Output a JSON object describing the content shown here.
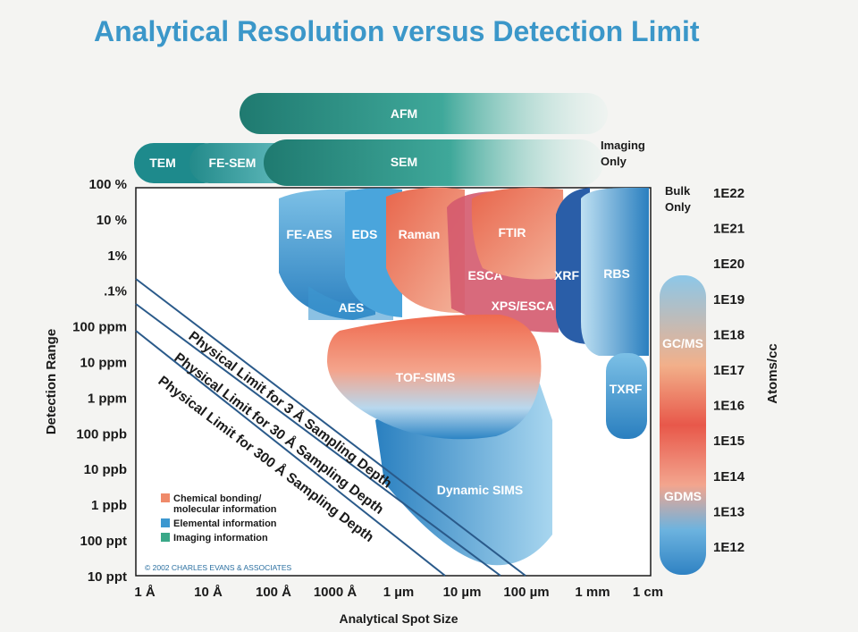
{
  "title": "Analytical Resolution versus Detection Limit",
  "y_axis_title": "Detection Range",
  "x_axis_title": "Analytical Spot Size",
  "right_axis_title": "Atoms/cc",
  "y_ticks": [
    "100 %",
    "10 %",
    "1%",
    ".1%",
    "100 ppm",
    "10 ppm",
    "1 ppm",
    "100 ppb",
    "10 ppb",
    "1 ppb",
    "100 ppt",
    "10 ppt"
  ],
  "x_ticks": [
    "1 Å",
    "10 Å",
    "100 Å",
    "1000 Å",
    "1 µm",
    "10 µm",
    "100 µm",
    "1 mm",
    "1 cm"
  ],
  "right_ticks": [
    "1E22",
    "1E21",
    "1E20",
    "1E19",
    "1E18",
    "1E17",
    "1E16",
    "1E15",
    "1E14",
    "1E13",
    "1E12"
  ],
  "imaging_only_label": [
    "Imaging",
    "Only"
  ],
  "bulk_only_label": [
    "Bulk",
    "Only"
  ],
  "techniques": {
    "afm": "AFM",
    "tem": "TEM",
    "fesem": "FE-SEM",
    "sem": "SEM",
    "feaes": "FE-AES",
    "eds": "EDS",
    "raman": "Raman",
    "ftir": "FTIR",
    "esca": "ESCA",
    "xpsesca": "XPS/ESCA",
    "aes": "AES",
    "xrf": "XRF",
    "rbs": "RBS",
    "tofsims": "TOF-SIMS",
    "txrf": "TXRF",
    "dynsims": "Dynamic SIMS",
    "gcms": "GC/MS",
    "gdms": "GDMS"
  },
  "limits": [
    "Physical Limit for 3 Å Sampling Depth",
    "Physical Limit for 30 Å Sampling Depth",
    "Physical Limit for 300 Å Sampling Depth"
  ],
  "legend": [
    {
      "lines": [
        "Chemical bonding/",
        "molecular information"
      ],
      "color": "#ef8a6a"
    },
    {
      "lines": [
        "Elemental information"
      ],
      "color": "#3d98d0"
    },
    {
      "lines": [
        "Imaging information"
      ],
      "color": "#3aa888"
    }
  ],
  "copyright": "© 2002 CHARLES EVANS & ASSOCIATES",
  "colors": {
    "chemical": "#e8664c",
    "elemental": "#3d98d0",
    "imaging": "#2e9a84",
    "title": "#3b97c9"
  }
}
